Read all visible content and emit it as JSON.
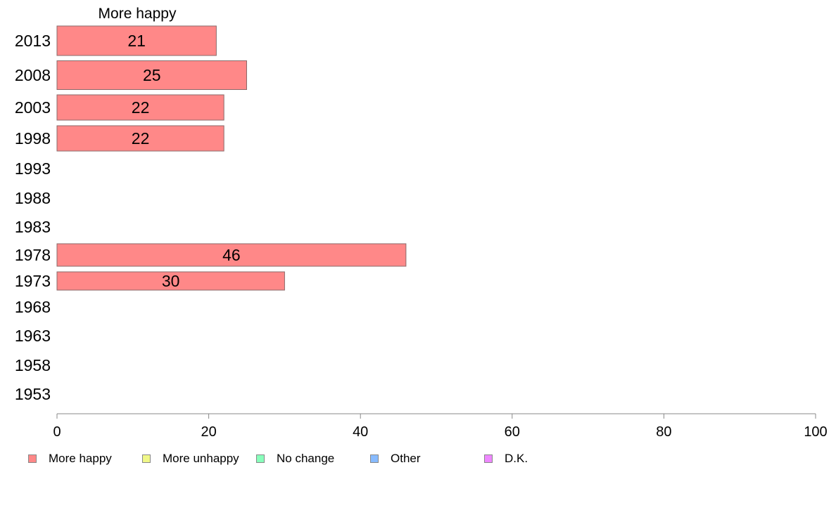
{
  "chart_data": {
    "type": "bar",
    "orientation": "horizontal",
    "title": "More happy",
    "categories": [
      "2013",
      "2008",
      "2003",
      "1998",
      "1993",
      "1988",
      "1983",
      "1978",
      "1973",
      "1968",
      "1963",
      "1958",
      "1953"
    ],
    "series": [
      {
        "name": "More happy",
        "color": "#ff8888",
        "values": [
          21,
          25,
          22,
          22,
          null,
          null,
          null,
          46,
          30,
          null,
          null,
          null,
          null
        ],
        "value_labels": [
          "21",
          "25",
          "22",
          "22",
          "",
          "",
          "",
          "46",
          "30",
          "",
          "",
          "",
          ""
        ]
      }
    ],
    "xlim": [
      0,
      100
    ],
    "xticks": [
      "0",
      "20",
      "40",
      "60",
      "80",
      "100"
    ],
    "grid": false,
    "legend_position": "bottom"
  },
  "legend": [
    {
      "label": "More happy",
      "color": "#ff8888"
    },
    {
      "label": "More unhappy",
      "color": "#f0f888"
    },
    {
      "label": "No change",
      "color": "#88ffbb"
    },
    {
      "label": "Other",
      "color": "#88bbff"
    },
    {
      "label": "D.K.",
      "color": "#ee88ff"
    }
  ]
}
